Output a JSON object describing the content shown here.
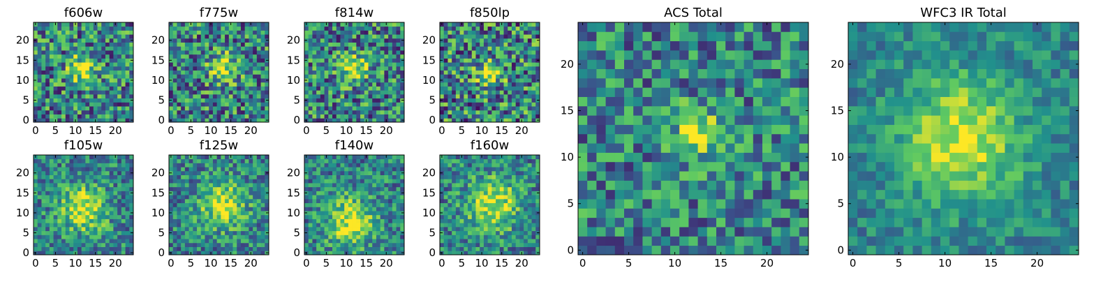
{
  "figure_description_title": "",
  "colormap": [
    "#440154",
    "#3b528b",
    "#21918c",
    "#5ec962",
    "#fde725"
  ],
  "chart_data": [
    {
      "type": "heatmap",
      "title": "f606w",
      "grid_size": 25,
      "xlim": [
        0,
        25
      ],
      "ylim": [
        0,
        25
      ],
      "xticks": [
        "0",
        "5",
        "10",
        "15",
        "20"
      ],
      "yticks": [
        "0",
        "5",
        "10",
        "15",
        "20"
      ],
      "peak": [
        12,
        13
      ],
      "spread": 2.5,
      "noise": 0.55,
      "seed": 11
    },
    {
      "type": "heatmap",
      "title": "f775w",
      "grid_size": 25,
      "xlim": [
        0,
        25
      ],
      "ylim": [
        0,
        25
      ],
      "xticks": [
        "0",
        "5",
        "10",
        "15",
        "20"
      ],
      "yticks": [
        "0",
        "5",
        "10",
        "15",
        "20"
      ],
      "peak": [
        13,
        13
      ],
      "spread": 2.5,
      "noise": 0.55,
      "seed": 23
    },
    {
      "type": "heatmap",
      "title": "f814w",
      "grid_size": 25,
      "xlim": [
        0,
        25
      ],
      "ylim": [
        0,
        25
      ],
      "xticks": [
        "0",
        "5",
        "10",
        "15",
        "20"
      ],
      "yticks": [
        "0",
        "5",
        "10",
        "15",
        "20"
      ],
      "peak": [
        12,
        13
      ],
      "spread": 2.5,
      "noise": 0.55,
      "seed": 37
    },
    {
      "type": "heatmap",
      "title": "f850lp",
      "grid_size": 25,
      "xlim": [
        0,
        25
      ],
      "ylim": [
        0,
        25
      ],
      "xticks": [
        "0",
        "5",
        "10",
        "15",
        "20"
      ],
      "yticks": [
        "0",
        "5",
        "10",
        "15",
        "20"
      ],
      "peak": [
        12,
        12
      ],
      "spread": 2.2,
      "noise": 0.6,
      "seed": 41
    },
    {
      "type": "heatmap",
      "title": "f105w",
      "grid_size": 25,
      "xlim": [
        0,
        25
      ],
      "ylim": [
        0,
        25
      ],
      "xticks": [
        "0",
        "5",
        "10",
        "15",
        "20"
      ],
      "yticks": [
        "0",
        "5",
        "10",
        "15",
        "20"
      ],
      "peak": [
        12,
        11
      ],
      "spread": 4,
      "noise": 0.4,
      "seed": 53
    },
    {
      "type": "heatmap",
      "title": "f125w",
      "grid_size": 25,
      "xlim": [
        0,
        25
      ],
      "ylim": [
        0,
        25
      ],
      "xticks": [
        "0",
        "5",
        "10",
        "15",
        "20"
      ],
      "yticks": [
        "0",
        "5",
        "10",
        "15",
        "20"
      ],
      "peak": [
        13,
        12
      ],
      "spread": 4,
      "noise": 0.4,
      "seed": 67
    },
    {
      "type": "heatmap",
      "title": "f140w",
      "grid_size": 25,
      "xlim": [
        0,
        25
      ],
      "ylim": [
        0,
        25
      ],
      "xticks": [
        "0",
        "5",
        "10",
        "15",
        "20"
      ],
      "yticks": [
        "0",
        "5",
        "10",
        "15",
        "20"
      ],
      "peak": [
        11,
        8
      ],
      "spread": 4.2,
      "noise": 0.4,
      "seed": 71
    },
    {
      "type": "heatmap",
      "title": "f160w",
      "grid_size": 25,
      "xlim": [
        0,
        25
      ],
      "ylim": [
        0,
        25
      ],
      "xticks": [
        "0",
        "5",
        "10",
        "15",
        "20"
      ],
      "yticks": [
        "0",
        "5",
        "10",
        "15",
        "20"
      ],
      "peak": [
        13,
        12
      ],
      "spread": 4.5,
      "noise": 0.4,
      "seed": 83
    },
    {
      "type": "heatmap",
      "title": "ACS Total",
      "grid_size": 25,
      "xlim": [
        0,
        25
      ],
      "ylim": [
        0,
        25
      ],
      "xticks": [
        "0",
        "5",
        "10",
        "15",
        "20"
      ],
      "yticks": [
        "0",
        "5",
        "10",
        "15",
        "20"
      ],
      "peak": [
        12.5,
        12.5
      ],
      "spread": 1.8,
      "noise": 0.45,
      "seed": 97
    },
    {
      "type": "heatmap",
      "title": "WFC3 IR Total",
      "grid_size": 25,
      "xlim": [
        0,
        25
      ],
      "ylim": [
        0,
        25
      ],
      "xticks": [
        "0",
        "5",
        "10",
        "15",
        "20"
      ],
      "yticks": [
        "0",
        "5",
        "10",
        "15",
        "20"
      ],
      "peak": [
        12,
        12
      ],
      "spread": 4.5,
      "noise": 0.25,
      "seed": 101
    }
  ]
}
